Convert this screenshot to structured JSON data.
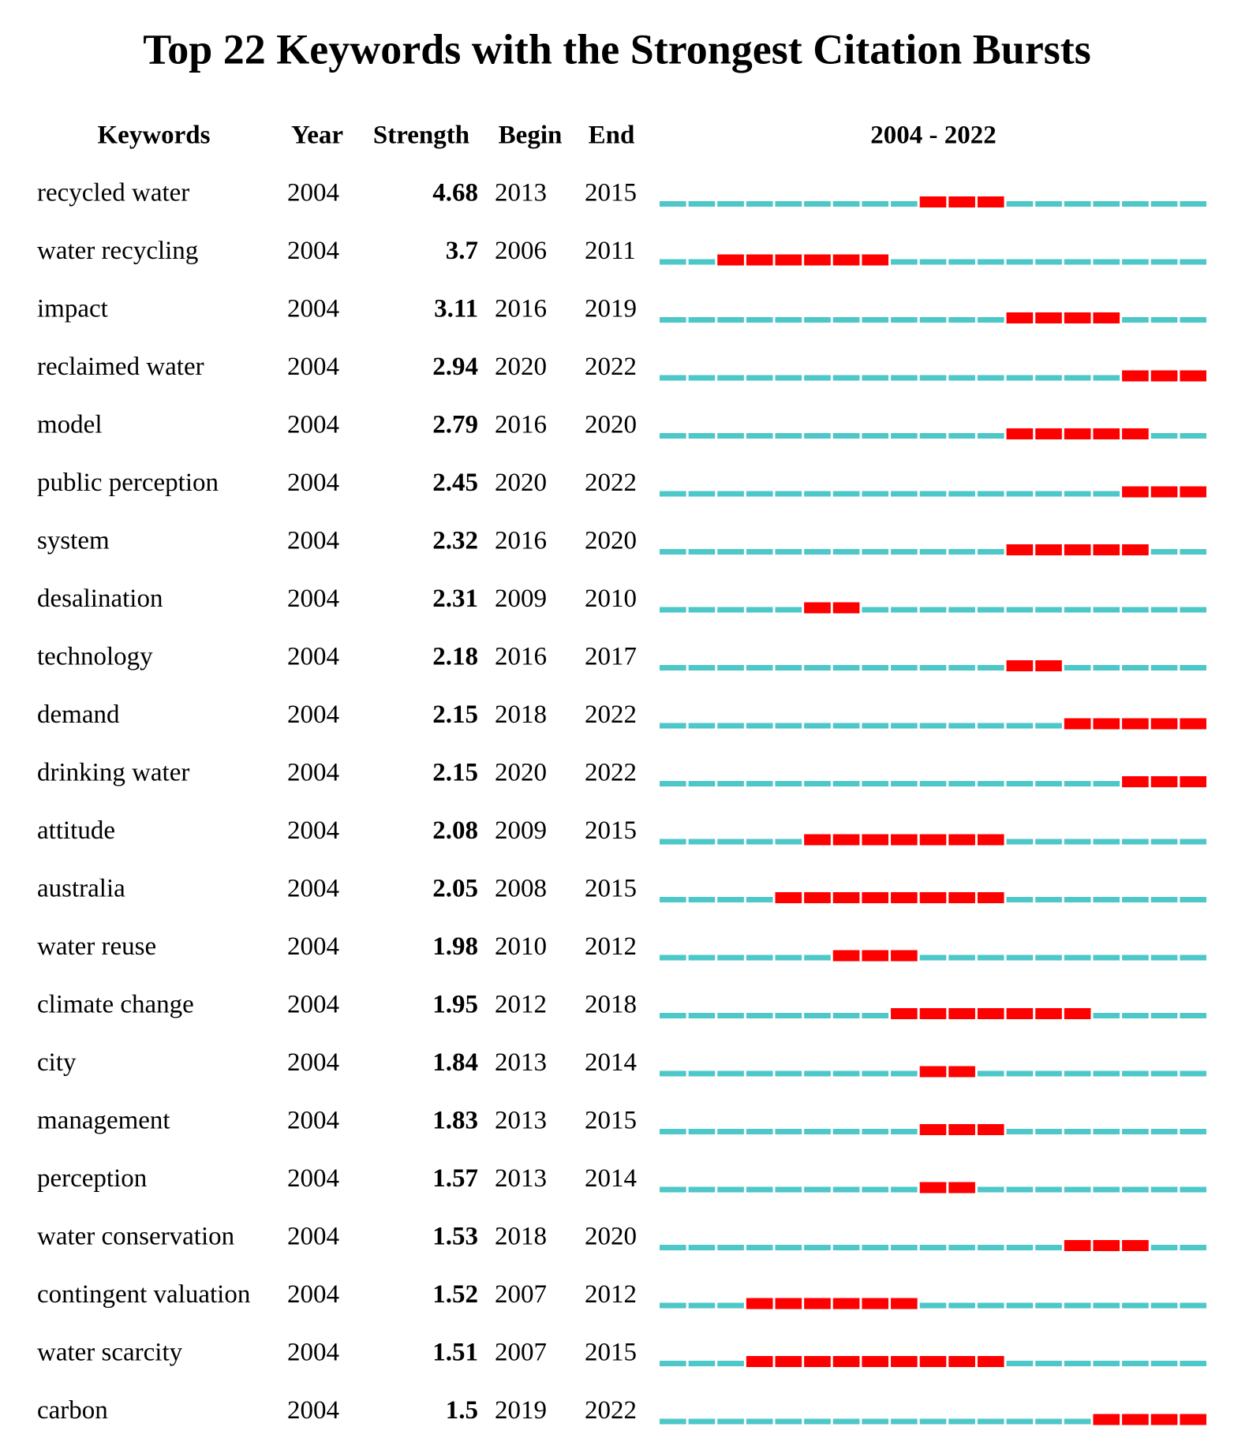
{
  "title": "Top 22 Keywords with the Strongest Citation Bursts",
  "columns": [
    "Keywords",
    "Year",
    "Strength",
    "Begin",
    "End",
    "2004 - 2022"
  ],
  "timeline": {
    "start": 2004,
    "end": 2022
  },
  "rows": [
    {
      "keyword": "recycled water",
      "year": 2004,
      "strength": 4.68,
      "begin": 2013,
      "end": 2015
    },
    {
      "keyword": "water recycling",
      "year": 2004,
      "strength": 3.7,
      "begin": 2006,
      "end": 2011
    },
    {
      "keyword": "impact",
      "year": 2004,
      "strength": 3.11,
      "begin": 2016,
      "end": 2019
    },
    {
      "keyword": "reclaimed water",
      "year": 2004,
      "strength": 2.94,
      "begin": 2020,
      "end": 2022
    },
    {
      "keyword": "model",
      "year": 2004,
      "strength": 2.79,
      "begin": 2016,
      "end": 2020
    },
    {
      "keyword": "public perception",
      "year": 2004,
      "strength": 2.45,
      "begin": 2020,
      "end": 2022
    },
    {
      "keyword": "system",
      "year": 2004,
      "strength": 2.32,
      "begin": 2016,
      "end": 2020
    },
    {
      "keyword": "desalination",
      "year": 2004,
      "strength": 2.31,
      "begin": 2009,
      "end": 2010
    },
    {
      "keyword": "technology",
      "year": 2004,
      "strength": 2.18,
      "begin": 2016,
      "end": 2017
    },
    {
      "keyword": "demand",
      "year": 2004,
      "strength": 2.15,
      "begin": 2018,
      "end": 2022
    },
    {
      "keyword": "drinking water",
      "year": 2004,
      "strength": 2.15,
      "begin": 2020,
      "end": 2022
    },
    {
      "keyword": "attitude",
      "year": 2004,
      "strength": 2.08,
      "begin": 2009,
      "end": 2015
    },
    {
      "keyword": "australia",
      "year": 2004,
      "strength": 2.05,
      "begin": 2008,
      "end": 2015
    },
    {
      "keyword": "water reuse",
      "year": 2004,
      "strength": 1.98,
      "begin": 2010,
      "end": 2012
    },
    {
      "keyword": "climate change",
      "year": 2004,
      "strength": 1.95,
      "begin": 2012,
      "end": 2018
    },
    {
      "keyword": "city",
      "year": 2004,
      "strength": 1.84,
      "begin": 2013,
      "end": 2014
    },
    {
      "keyword": "management",
      "year": 2004,
      "strength": 1.83,
      "begin": 2013,
      "end": 2015
    },
    {
      "keyword": "perception",
      "year": 2004,
      "strength": 1.57,
      "begin": 2013,
      "end": 2014
    },
    {
      "keyword": "water conservation",
      "year": 2004,
      "strength": 1.53,
      "begin": 2018,
      "end": 2020
    },
    {
      "keyword": "contingent valuation",
      "year": 2004,
      "strength": 1.52,
      "begin": 2007,
      "end": 2012
    },
    {
      "keyword": "water scarcity",
      "year": 2004,
      "strength": 1.51,
      "begin": 2007,
      "end": 2015
    },
    {
      "keyword": "carbon",
      "year": 2004,
      "strength": 1.5,
      "begin": 2019,
      "end": 2022
    }
  ]
}
